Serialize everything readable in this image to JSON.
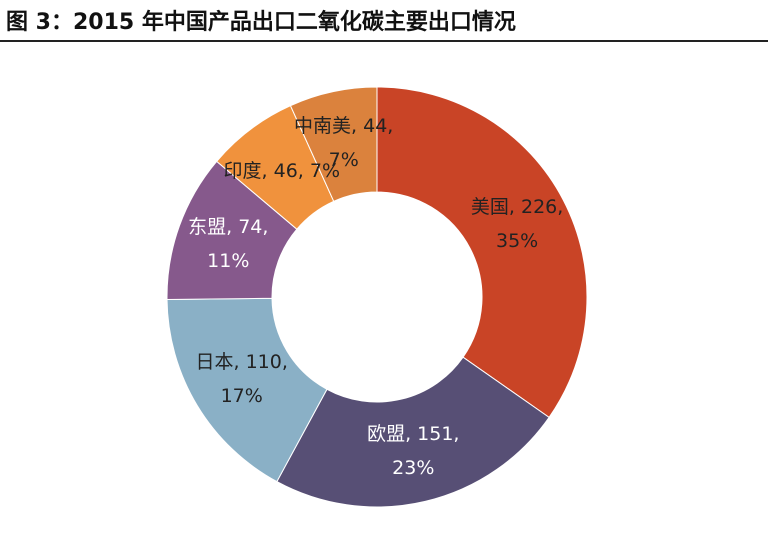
{
  "chart_data": {
    "type": "donut",
    "title": "图 3：2015 年中国产品出口二氧化碳主要出口情况",
    "values": [
      226,
      151,
      110,
      74,
      46,
      44
    ],
    "value_labels": [
      "美国, 226, 35%",
      "欧盟, 151, 23%",
      "日本, 110, 17%",
      "东盟, 74, 11%",
      "印度, 46, 7%",
      "中南美, 44, 7%"
    ],
    "colors": [
      "#c94426",
      "#574f75",
      "#8ab0c6",
      "#86598c",
      "#f0923d",
      "#db823d"
    ],
    "label_colors": [
      "#222222",
      "#ffffff",
      "#222222",
      "#ffffff",
      "#222222",
      "#222222"
    ]
  }
}
